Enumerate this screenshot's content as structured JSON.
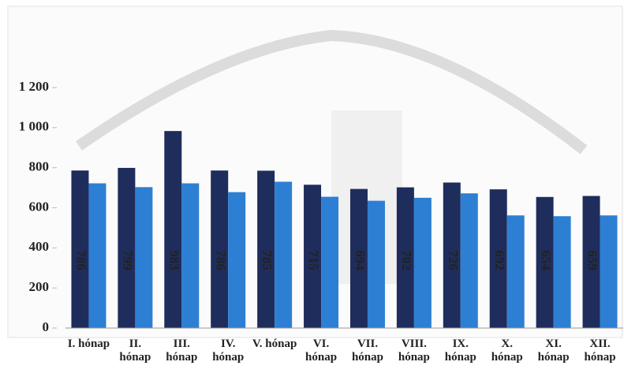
{
  "chart_data": {
    "type": "bar",
    "categories": [
      "I. hónap",
      "II. hónap",
      "III. hónap",
      "IV. hónap",
      "V. hónap",
      "VI. hónap",
      "VII. hónap",
      "VIII. hónap",
      "IX. hónap",
      "X. hónap",
      "XI. hónap",
      "XII. hónap"
    ],
    "series": [
      {
        "color": "#1f2d5c",
        "values": [
          786,
          799,
          983,
          786,
          785,
          715,
          694,
          702,
          726,
          692,
          654,
          659
        ]
      },
      {
        "color": "#2d7fd4",
        "values": [
          722,
          703,
          722,
          678,
          730,
          655,
          635,
          650,
          672,
          562,
          558,
          562
        ]
      }
    ],
    "ylim": [
      0,
      1200
    ],
    "yticks": [
      0,
      200,
      400,
      600,
      800,
      {
        "value": 1000,
        "label": "1 000"
      },
      {
        "value": 1200,
        "label": "1 200"
      }
    ]
  }
}
